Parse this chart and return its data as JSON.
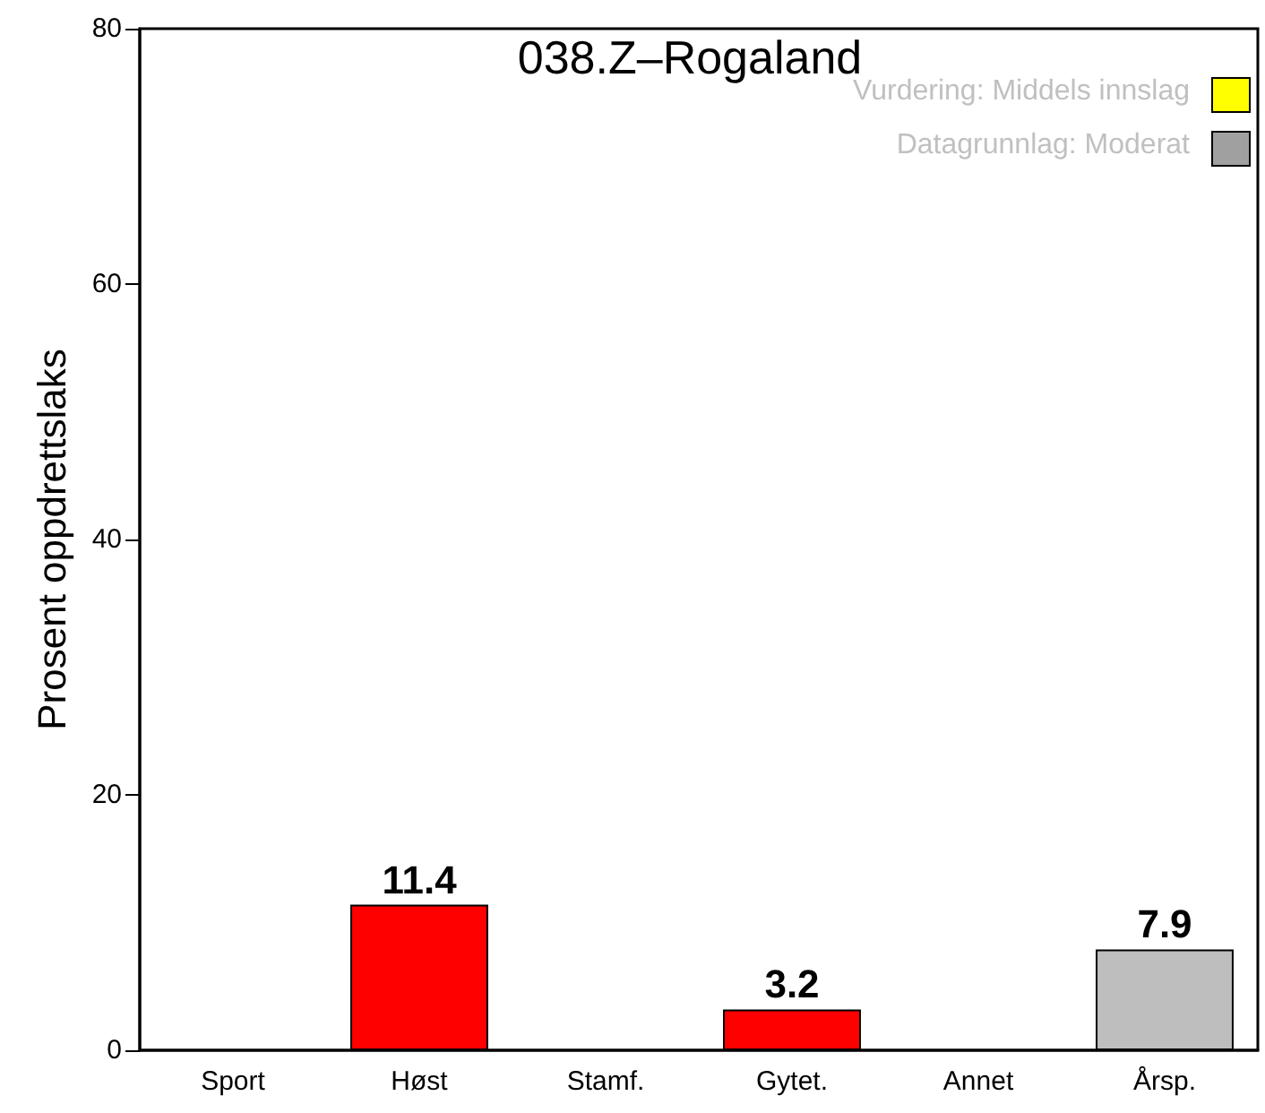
{
  "chart_data": {
    "type": "bar",
    "title": "038.Z–Rogaland",
    "ylabel": "Prosent oppdrettslaks",
    "categories": [
      "Sport",
      "Høst",
      "Stamf.",
      "Gytet.",
      "Annet",
      "Årsp."
    ],
    "values": [
      null,
      11.4,
      null,
      3.2,
      null,
      7.9
    ],
    "colors": [
      "#ff0000",
      "#ff0000",
      "#ff0000",
      "#ff0000",
      "#bebebe",
      "#bebebe"
    ],
    "ylim": [
      0,
      80
    ],
    "yticks": [
      0,
      20,
      40,
      60,
      80
    ],
    "grid": false,
    "data_labels": true,
    "annotations": [
      "Vurdering: Middels innslag",
      "Datagrunnlag: Moderat"
    ]
  }
}
